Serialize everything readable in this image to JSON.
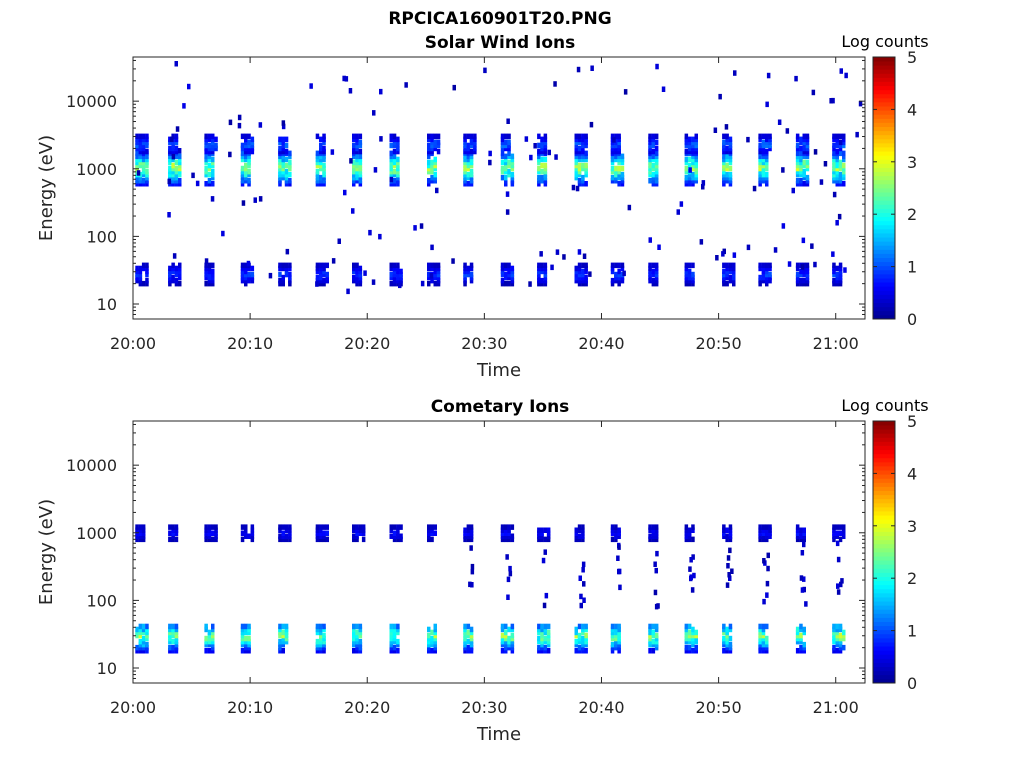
{
  "figure_title": "RPCICA160901T20.PNG",
  "colors": {
    "colormap": [
      "#00008f",
      "#0000ff",
      "#0080ff",
      "#00ffff",
      "#80ff80",
      "#ffff00",
      "#ff8000",
      "#ff0000",
      "#800000"
    ],
    "background": "#ffffff",
    "axes": "#262626"
  },
  "chart_data": [
    {
      "type": "heatmap",
      "title": "Solar Wind Ions",
      "xlabel": "Time",
      "ylabel": "Energy (eV)",
      "x_tick_labels": [
        "20:00",
        "20:10",
        "20:20",
        "20:30",
        "20:40",
        "20:50",
        "21:00"
      ],
      "x_ticks_minutes": [
        0,
        10,
        20,
        30,
        40,
        50,
        60
      ],
      "xlim_minutes": [
        0,
        62.5
      ],
      "y_scale": "log",
      "ylim": [
        6,
        45000
      ],
      "y_tick_values": [
        10,
        100,
        1000,
        10000
      ],
      "y_tick_labels": [
        "10",
        "100",
        "1000",
        "10000"
      ],
      "colorbar": {
        "label": "Log counts",
        "range": [
          0,
          5
        ],
        "ticks": [
          "0",
          "1",
          "2",
          "3",
          "4",
          "5"
        ]
      },
      "sweep_start_minutes": [
        0.2,
        3.0,
        6.1,
        9.2,
        12.4,
        15.6,
        18.7,
        21.9,
        25.1,
        28.2,
        31.4,
        34.5,
        37.7,
        40.8,
        44.0,
        47.1,
        50.3,
        53.4,
        56.6,
        59.7
      ],
      "bands": [
        {
          "name": "solar wind peak",
          "center_eV": 1050,
          "low_eV": 600,
          "high_eV": 1800,
          "peak_log_counts": 2.9
        },
        {
          "name": "solar wind upper",
          "center_eV": 2300,
          "low_eV": 1800,
          "high_eV": 3200,
          "peak_log_counts": 1.2
        },
        {
          "name": "low energy",
          "center_eV": 28,
          "low_eV": 20,
          "high_eV": 38,
          "peak_log_counts": 1.0
        }
      ],
      "scatter_range_eV": [
        15,
        40000
      ]
    },
    {
      "type": "heatmap",
      "title": "Cometary Ions",
      "xlabel": "Time",
      "ylabel": "Energy (eV)",
      "x_tick_labels": [
        "20:00",
        "20:10",
        "20:20",
        "20:30",
        "20:40",
        "20:50",
        "21:00"
      ],
      "x_ticks_minutes": [
        0,
        10,
        20,
        30,
        40,
        50,
        60
      ],
      "xlim_minutes": [
        0,
        62.5
      ],
      "y_scale": "log",
      "ylim": [
        6,
        45000
      ],
      "y_tick_values": [
        10,
        100,
        1000,
        10000
      ],
      "y_tick_labels": [
        "10",
        "100",
        "1000",
        "10000"
      ],
      "colorbar": {
        "label": "Log counts",
        "range": [
          0,
          5
        ],
        "ticks": [
          "0",
          "1",
          "2",
          "3",
          "4",
          "5"
        ]
      },
      "sweep_start_minutes": [
        0.2,
        3.0,
        6.1,
        9.2,
        12.4,
        15.6,
        18.7,
        21.9,
        25.1,
        28.2,
        31.4,
        34.5,
        37.7,
        40.8,
        44.0,
        47.1,
        50.3,
        53.4,
        56.6,
        59.7
      ],
      "bands": [
        {
          "name": "low energy",
          "center_eV": 30,
          "low_eV": 18,
          "high_eV": 45,
          "peak_log_counts": 2.7
        },
        {
          "name": "1 keV line",
          "center_eV": 1000,
          "low_eV": 800,
          "high_eV": 1300,
          "peak_log_counts": 0.7
        }
      ],
      "trails": {
        "from_minute": 28.2,
        "low_eV": 80,
        "high_eV": 700
      }
    }
  ]
}
